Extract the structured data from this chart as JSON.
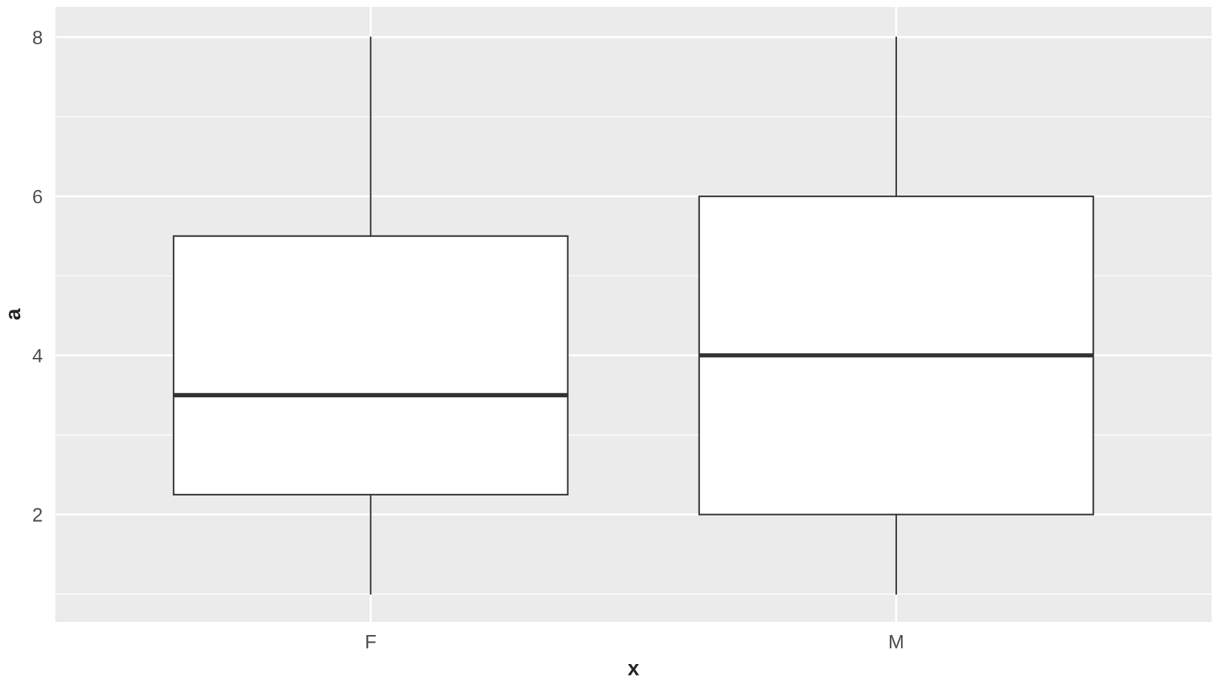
{
  "chart_data": {
    "type": "box",
    "xlabel": "x",
    "ylabel": "a",
    "categories": [
      "F",
      "M"
    ],
    "boxes": [
      {
        "low": 1,
        "q1": 2.25,
        "median": 3.5,
        "q3": 5.5,
        "high": 8
      },
      {
        "low": 1,
        "q1": 2,
        "median": 4,
        "q3": 6,
        "high": 8
      }
    ],
    "ylim": [
      0.65,
      8.38
    ],
    "yticks": [
      2,
      4,
      6,
      8
    ],
    "grid": true,
    "legend": false
  }
}
